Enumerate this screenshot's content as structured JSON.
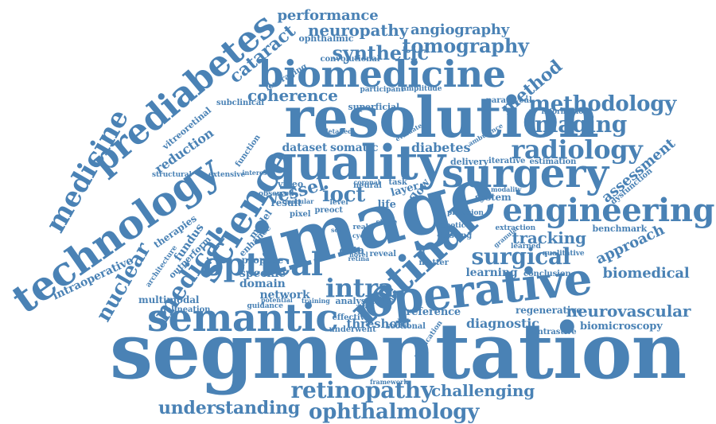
{
  "word_cloud": {
    "color": "#4a82b5",
    "words": [
      "segmentation",
      "image",
      "resolution",
      "operative",
      "technology",
      "quality",
      "biomedicine",
      "surgery",
      "retinal",
      "science",
      "prediabetes",
      "semantic",
      "engineering",
      "optical",
      "radiology",
      "medicine",
      "methodology",
      "imaging",
      "retinopathy",
      "ophthalmology",
      "understanding",
      "neurovascular",
      "intra",
      "tomography",
      "synthetic",
      "performance",
      "neuropathy",
      "angiography",
      "method",
      "cataract",
      "surgical",
      "coherence",
      "medical",
      "nuclear",
      "biomedical",
      "tracking",
      "ioct",
      "intraoperative",
      "challenging",
      "assessment",
      "approach",
      "diagnostic",
      "vessel",
      "speckle",
      "network",
      "threshold",
      "reference",
      "regenerative",
      "biomicroscopy",
      "learning",
      "reduction",
      "diabetes",
      "dataset",
      "somatic",
      "delivery",
      "iterative",
      "estimation",
      "system",
      "conclusion",
      "benchmark",
      "fundus",
      "propose",
      "domain",
      "multimodal",
      "analysis",
      "effective",
      "sectional",
      "outperform",
      "therapies",
      "superficial",
      "subclinical",
      "leveraging",
      "vitreoretinal",
      "structural",
      "extensive",
      "video",
      "result",
      "neural",
      "layer",
      "flow",
      "life",
      "model",
      "pixel",
      "preoct",
      "enhance",
      "architecture",
      "data",
      "novel",
      "reveal",
      "retina",
      "matter",
      "robotic",
      "testing",
      "extraction",
      "learned",
      "qualitative",
      "contrastive",
      "application",
      "underwent",
      "framework",
      "precision",
      "modality",
      "dysfunction",
      "information",
      "parafoveal",
      "amplitude",
      "participant",
      "convolutional",
      "ophthalmic",
      "function",
      "detailed",
      "delineation",
      "guidance",
      "potential",
      "training",
      "planning",
      "guided",
      "interest",
      "observed",
      "macular",
      "coronal",
      "task",
      "real",
      "level",
      "stage",
      "cycle",
      "scan",
      "granular",
      "ambulance",
      "evaluate"
    ]
  }
}
